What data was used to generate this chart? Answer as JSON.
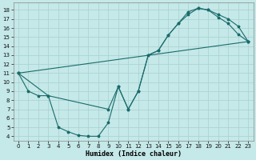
{
  "xlabel": "Humidex (Indice chaleur)",
  "bg_color": "#c5e8e8",
  "line_color": "#1a6b6b",
  "grid_color": "#a8d0d0",
  "xlim": [
    -0.5,
    23.5
  ],
  "ylim": [
    3.5,
    18.8
  ],
  "xticks": [
    0,
    1,
    2,
    3,
    4,
    5,
    6,
    7,
    8,
    9,
    10,
    11,
    12,
    13,
    14,
    15,
    16,
    17,
    18,
    19,
    20,
    21,
    22,
    23
  ],
  "yticks": [
    4,
    5,
    6,
    7,
    8,
    9,
    10,
    11,
    12,
    13,
    14,
    15,
    16,
    17,
    18
  ],
  "line1_x": [
    0,
    1,
    2,
    3,
    4,
    5,
    6,
    7,
    8,
    9,
    10,
    11,
    12,
    13,
    14,
    15,
    16,
    17,
    18,
    19,
    20,
    21,
    22,
    23
  ],
  "line1_y": [
    11,
    9,
    8.5,
    8.5,
    5,
    4.5,
    4.1,
    4.0,
    4.0,
    5.5,
    9.5,
    7.0,
    9.0,
    13,
    13.5,
    15.2,
    16.5,
    17.5,
    18.2,
    18.0,
    17.2,
    16.5,
    15.3,
    14.5
  ],
  "line2_x": [
    0,
    3,
    9,
    10,
    11,
    12,
    13,
    14,
    15,
    16,
    17,
    18,
    19,
    20,
    21,
    22,
    23
  ],
  "line2_y": [
    11,
    8.5,
    7.0,
    9.5,
    7.0,
    9.0,
    13.0,
    13.5,
    15.2,
    16.5,
    17.8,
    18.2,
    18.0,
    17.5,
    17.0,
    16.2,
    14.5
  ],
  "line3_x": [
    0,
    23
  ],
  "line3_y": [
    11,
    14.5
  ]
}
